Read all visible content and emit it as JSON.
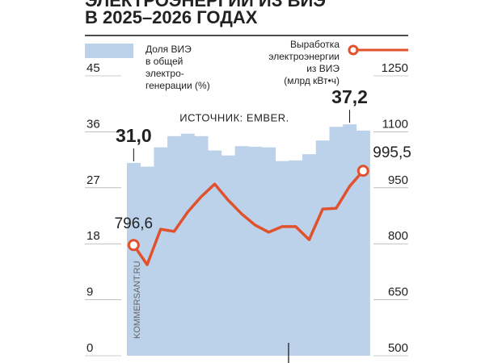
{
  "chart_data": {
    "type": "bar-line",
    "title": "ЭЛЕКТРОЭНЕРГИИ ИЗ ВИЭ",
    "subtitle": "В 2025–2026 ГОДАХ",
    "source": "ИСТОЧНИК: EMBER.",
    "watermark": "KOMMERSANT.RU",
    "categories": [
      null,
      null,
      null,
      null,
      null,
      null,
      null,
      null,
      null,
      null,
      null,
      null,
      null,
      null,
      null,
      null,
      null,
      null
    ],
    "series": [
      {
        "name": "Доля ВИЭ\nв общей\nэлектро-\nгенерации (%)",
        "type": "bar",
        "color": "#bcd2ea",
        "values": [
          31.0,
          30.4,
          33.5,
          35.3,
          35.7,
          35.3,
          33.0,
          32.2,
          33.7,
          33.6,
          33.5,
          31.3,
          31.4,
          32.4,
          34.6,
          36.8,
          37.2,
          36.2
        ],
        "value_labels": [
          "31,0",
          null,
          null,
          null,
          null,
          null,
          null,
          null,
          null,
          null,
          null,
          null,
          null,
          null,
          null,
          null,
          "37,2",
          null
        ]
      },
      {
        "name": "Выработка\nэлектроэнергии\nиз ВИЭ\n(млрд кВт•ч)",
        "type": "line",
        "axis": "y2",
        "color": "#e0522e",
        "values": [
          796.6,
          744,
          839,
          833,
          885,
          926,
          960,
          917,
          880,
          850,
          831,
          846,
          846,
          811,
          893,
          895,
          954,
          995.5
        ],
        "value_labels": [
          "796,6",
          null,
          null,
          null,
          null,
          null,
          null,
          null,
          null,
          null,
          null,
          null,
          null,
          null,
          null,
          null,
          null,
          "995,5"
        ]
      }
    ],
    "ylim": [
      0,
      45
    ],
    "yticks": [
      0,
      9,
      18,
      27,
      36,
      45
    ],
    "y2lim": [
      500,
      1250
    ],
    "y2ticks": [
      500,
      650,
      800,
      950,
      1100,
      1250
    ]
  }
}
